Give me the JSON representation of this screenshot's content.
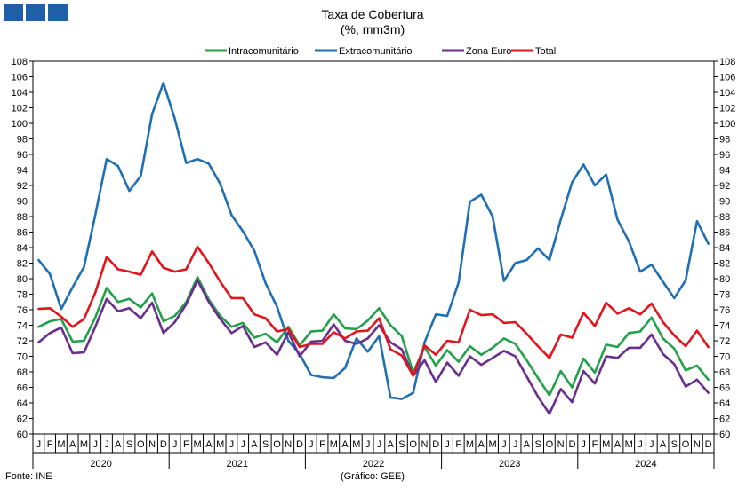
{
  "header": {
    "logo_icon": "gee-logo-icon"
  },
  "footer": {
    "source": "Fonte: INE",
    "credit": "(Gráfico: GEE)"
  },
  "chart_data": {
    "type": "line",
    "title": "Taxa de Cobertura",
    "subtitle": "(%, mm3m)",
    "legend_position": "top",
    "grid": false,
    "ylim": [
      60,
      108
    ],
    "yticks": [
      60,
      62,
      64,
      66,
      68,
      70,
      72,
      74,
      76,
      78,
      80,
      82,
      84,
      86,
      88,
      90,
      92,
      94,
      96,
      98,
      100,
      102,
      104,
      106,
      108
    ],
    "month_labels": [
      "J",
      "F",
      "M",
      "A",
      "M",
      "J",
      "J",
      "A",
      "S",
      "O",
      "N",
      "D"
    ],
    "years": [
      "2020",
      "2021",
      "2022",
      "2023",
      "2024"
    ],
    "series": [
      {
        "name": "Intracomunitário",
        "color": "#22a14a",
        "values": [
          73.8,
          74.5,
          74.8,
          71.9,
          72.0,
          75.0,
          78.8,
          77.0,
          77.4,
          76.3,
          78.1,
          74.5,
          75.2,
          77.0,
          80.2,
          77.3,
          75.2,
          73.8,
          74.3,
          72.4,
          72.9,
          71.8,
          73.8,
          71.4,
          73.2,
          73.3,
          75.4,
          73.6,
          73.5,
          74.6,
          76.2,
          74.0,
          72.6,
          67.9,
          71.2,
          68.8,
          70.8,
          69.3,
          71.3,
          70.2,
          71.1,
          72.3,
          71.6,
          69.5,
          67.2,
          65.0,
          68.1,
          66.0,
          69.7,
          67.9,
          71.5,
          71.2,
          73.0,
          73.2,
          75.0,
          72.3,
          71.0,
          68.2,
          68.8,
          67.0
        ]
      },
      {
        "name": "Extracomunitário",
        "color": "#1f6fb4",
        "values": [
          82.4,
          80.6,
          76.1,
          78.9,
          81.5,
          88.2,
          95.4,
          94.5,
          91.3,
          93.2,
          101.2,
          105.2,
          100.6,
          94.9,
          95.4,
          94.8,
          92.2,
          88.2,
          86.1,
          83.6,
          79.4,
          76.4,
          72.0,
          70.3,
          67.6,
          67.3,
          67.2,
          68.5,
          72.3,
          70.6,
          72.6,
          64.7,
          64.5,
          65.3,
          71.8,
          75.4,
          75.2,
          79.5,
          89.9,
          90.8,
          88.0,
          79.7,
          82.0,
          82.4,
          83.9,
          82.4,
          87.6,
          92.4,
          94.7,
          92.0,
          93.4,
          87.6,
          84.8,
          80.9,
          81.8,
          79.6,
          77.5,
          79.8,
          87.4,
          84.5
        ]
      },
      {
        "name": "Zona Euro",
        "color": "#6a2f8e",
        "values": [
          71.8,
          73.0,
          73.7,
          70.4,
          70.5,
          73.8,
          77.4,
          75.8,
          76.2,
          74.9,
          76.9,
          73.0,
          74.4,
          76.7,
          79.8,
          77.0,
          74.8,
          73.0,
          73.9,
          71.2,
          71.8,
          70.2,
          73.1,
          70.0,
          71.9,
          72.0,
          74.1,
          72.0,
          71.6,
          72.3,
          74.0,
          71.8,
          70.9,
          67.5,
          69.5,
          66.7,
          69.2,
          67.5,
          70.0,
          68.9,
          69.8,
          70.7,
          70.0,
          67.4,
          64.8,
          62.6,
          65.8,
          64.1,
          68.1,
          66.5,
          70.0,
          69.8,
          71.1,
          71.1,
          72.8,
          70.3,
          69.0,
          66.1,
          67.0,
          65.3
        ]
      },
      {
        "name": "Total",
        "color": "#e3141b",
        "values": [
          76.1,
          76.2,
          75.1,
          73.8,
          74.8,
          78.2,
          82.8,
          81.2,
          80.9,
          80.5,
          83.5,
          81.4,
          80.9,
          81.2,
          84.1,
          82.0,
          79.6,
          77.5,
          77.5,
          75.4,
          74.9,
          73.2,
          73.5,
          71.2,
          71.6,
          71.6,
          73.1,
          72.3,
          73.2,
          73.3,
          74.9,
          70.9,
          70.1,
          67.5,
          71.4,
          70.2,
          72.0,
          71.8,
          76.0,
          75.3,
          75.4,
          74.3,
          74.4,
          72.9,
          71.3,
          69.8,
          72.8,
          72.4,
          75.6,
          73.9,
          76.9,
          75.5,
          76.2,
          75.4,
          76.8,
          74.4,
          72.7,
          71.3,
          73.3,
          71.2
        ]
      }
    ]
  }
}
